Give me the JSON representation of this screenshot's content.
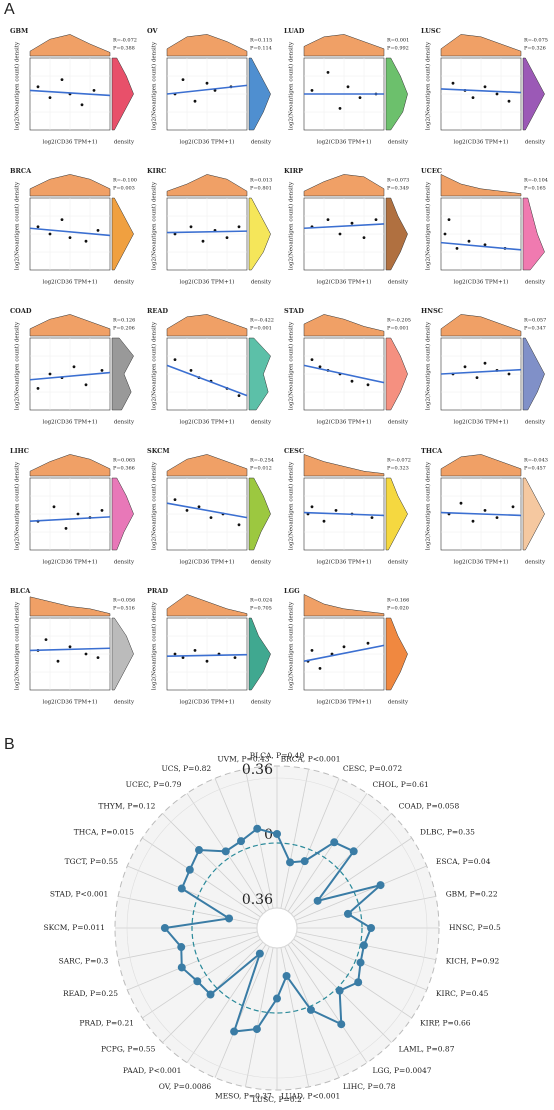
{
  "chart_data": [
    {
      "type": "scatter-grid",
      "panel_label": "A",
      "x_label": "log2(CD36 TPM+1)",
      "y_label": "log2(Neoantigen count) density",
      "density_label": "density",
      "xlim": [
        0,
        1
      ],
      "ylim": [
        0,
        1
      ],
      "top_density_color": "#f0a066",
      "fit_color": "#3b6fd1",
      "panels": [
        {
          "name": "GBM",
          "r": "R=-0.072",
          "p": "P=0.388",
          "color": "#e8506a",
          "px": [
            0.1,
            0.25,
            0.4,
            0.5,
            0.65,
            0.8
          ],
          "py": [
            0.6,
            0.45,
            0.7,
            0.5,
            0.35,
            0.55
          ],
          "fit": [
            0.55,
            0.48
          ],
          "td": [
            0.2,
            0.7,
            0.9,
            0.5,
            0.15
          ],
          "sd": [
            0.1,
            0.5,
            0.9,
            0.6,
            0.2
          ]
        },
        {
          "name": "OV",
          "r": "R=0.115",
          "p": "P=0.114",
          "color": "#4f8fd0",
          "px": [
            0.1,
            0.2,
            0.35,
            0.5,
            0.6,
            0.8
          ],
          "py": [
            0.5,
            0.7,
            0.4,
            0.65,
            0.55,
            0.6
          ],
          "fit": [
            0.5,
            0.62
          ],
          "td": [
            0.3,
            0.8,
            0.9,
            0.6,
            0.2
          ],
          "sd": [
            0.2,
            0.6,
            0.9,
            0.5,
            0.1
          ]
        },
        {
          "name": "LUAD",
          "r": "R=0.001",
          "p": "P=0.992",
          "color": "#6cc06c",
          "px": [
            0.1,
            0.3,
            0.45,
            0.55,
            0.7,
            0.9
          ],
          "py": [
            0.55,
            0.8,
            0.3,
            0.6,
            0.45,
            0.5
          ],
          "fit": [
            0.5,
            0.5
          ],
          "td": [
            0.4,
            0.8,
            0.9,
            0.6,
            0.3
          ],
          "sd": [
            0.2,
            0.7,
            0.9,
            0.6,
            0.2
          ]
        },
        {
          "name": "LUSC",
          "r": "R=-0.075",
          "p": "P=0.326",
          "color": "#9b59b6",
          "px": [
            0.15,
            0.3,
            0.4,
            0.55,
            0.7,
            0.85
          ],
          "py": [
            0.65,
            0.55,
            0.45,
            0.6,
            0.5,
            0.4
          ],
          "fit": [
            0.57,
            0.52
          ],
          "td": [
            0.3,
            0.9,
            0.8,
            0.5,
            0.2
          ],
          "sd": [
            0.1,
            0.5,
            0.9,
            0.5,
            0.1
          ]
        },
        {
          "name": "BRCA",
          "r": "R=-0.100",
          "p": "P=0.003",
          "color": "#f0a040",
          "px": [
            0.1,
            0.25,
            0.4,
            0.5,
            0.7,
            0.85
          ],
          "py": [
            0.6,
            0.5,
            0.7,
            0.45,
            0.4,
            0.55
          ],
          "fit": [
            0.58,
            0.48
          ],
          "td": [
            0.3,
            0.7,
            0.9,
            0.7,
            0.3
          ],
          "sd": [
            0.1,
            0.5,
            0.9,
            0.5,
            0.1
          ]
        },
        {
          "name": "KIRC",
          "r": "R=0.013",
          "p": "P=0.801",
          "color": "#f5e65a",
          "px": [
            0.1,
            0.3,
            0.45,
            0.6,
            0.75,
            0.9
          ],
          "py": [
            0.5,
            0.6,
            0.4,
            0.55,
            0.45,
            0.6
          ],
          "fit": [
            0.52,
            0.54
          ],
          "td": [
            0.2,
            0.5,
            0.9,
            0.7,
            0.2
          ],
          "sd": [
            0.1,
            0.6,
            0.9,
            0.5,
            0.1
          ]
        },
        {
          "name": "KIRP",
          "r": "R=0.073",
          "p": "P=0.349",
          "color": "#b07040",
          "px": [
            0.1,
            0.3,
            0.45,
            0.6,
            0.75,
            0.9
          ],
          "py": [
            0.6,
            0.7,
            0.5,
            0.65,
            0.45,
            0.7
          ],
          "fit": [
            0.58,
            0.64
          ],
          "td": [
            0.2,
            0.6,
            0.9,
            0.8,
            0.3
          ],
          "sd": [
            0.2,
            0.6,
            0.9,
            0.5,
            0.2
          ]
        },
        {
          "name": "UCEC",
          "r": "R=-0.104",
          "p": "P=0.165",
          "color": "#f07ab0",
          "px": [
            0.05,
            0.1,
            0.2,
            0.35,
            0.55,
            0.8
          ],
          "py": [
            0.5,
            0.7,
            0.3,
            0.4,
            0.35,
            0.3
          ],
          "fit": [
            0.38,
            0.28
          ],
          "td": [
            0.9,
            0.5,
            0.3,
            0.2,
            0.1
          ],
          "sd": [
            0.3,
            0.9,
            0.6,
            0.4,
            0.2
          ]
        },
        {
          "name": "COAD",
          "r": "R=0.126",
          "p": "P=0.206",
          "color": "#999999",
          "px": [
            0.1,
            0.25,
            0.4,
            0.55,
            0.7,
            0.9
          ],
          "py": [
            0.3,
            0.5,
            0.45,
            0.6,
            0.35,
            0.55
          ],
          "fit": [
            0.42,
            0.52
          ],
          "td": [
            0.3,
            0.7,
            0.9,
            0.6,
            0.3
          ],
          "sd": [
            0.4,
            0.8,
            0.5,
            0.9,
            0.3
          ]
        },
        {
          "name": "READ",
          "r": "R=-0.422",
          "p": "P=0.001",
          "color": "#5cc0a8",
          "px": [
            0.1,
            0.3,
            0.4,
            0.55,
            0.75,
            0.9
          ],
          "py": [
            0.7,
            0.55,
            0.45,
            0.4,
            0.3,
            0.2
          ],
          "fit": [
            0.62,
            0.2
          ],
          "td": [
            0.3,
            0.8,
            0.9,
            0.6,
            0.3
          ],
          "sd": [
            0.3,
            0.8,
            0.6,
            0.9,
            0.2
          ]
        },
        {
          "name": "STAD",
          "r": "R=-0.205",
          "p": "P=0.001",
          "color": "#f59080",
          "px": [
            0.1,
            0.2,
            0.3,
            0.45,
            0.6,
            0.8
          ],
          "py": [
            0.7,
            0.6,
            0.55,
            0.5,
            0.4,
            0.35
          ],
          "fit": [
            0.62,
            0.38
          ],
          "td": [
            0.5,
            0.9,
            0.7,
            0.4,
            0.2
          ],
          "sd": [
            0.2,
            0.6,
            0.9,
            0.6,
            0.2
          ]
        },
        {
          "name": "HNSC",
          "r": "R=0.057",
          "p": "P=0.347",
          "color": "#8090c8",
          "px": [
            0.15,
            0.3,
            0.45,
            0.55,
            0.7,
            0.85
          ],
          "py": [
            0.5,
            0.6,
            0.45,
            0.65,
            0.55,
            0.5
          ],
          "fit": [
            0.5,
            0.56
          ],
          "td": [
            0.3,
            0.9,
            0.8,
            0.5,
            0.2
          ],
          "sd": [
            0.2,
            0.6,
            0.9,
            0.5,
            0.1
          ]
        },
        {
          "name": "LIHC",
          "r": "R=0.065",
          "p": "P=0.366",
          "color": "#e878b8",
          "px": [
            0.1,
            0.3,
            0.45,
            0.6,
            0.75,
            0.9
          ],
          "py": [
            0.4,
            0.6,
            0.3,
            0.5,
            0.45,
            0.55
          ],
          "fit": [
            0.4,
            0.46
          ],
          "td": [
            0.2,
            0.6,
            0.9,
            0.7,
            0.3
          ],
          "sd": [
            0.2,
            0.5,
            0.9,
            0.6,
            0.2
          ]
        },
        {
          "name": "SKCM",
          "r": "R=-0.254",
          "p": "P=0.012",
          "color": "#9cc840",
          "px": [
            0.1,
            0.25,
            0.4,
            0.55,
            0.7,
            0.9
          ],
          "py": [
            0.7,
            0.55,
            0.6,
            0.45,
            0.5,
            0.35
          ],
          "fit": [
            0.65,
            0.45
          ],
          "td": [
            0.2,
            0.7,
            0.9,
            0.6,
            0.3
          ],
          "sd": [
            0.2,
            0.5,
            0.9,
            0.6,
            0.2
          ]
        },
        {
          "name": "CESC",
          "r": "R=-0.072",
          "p": "P=0.323",
          "color": "#f5d840",
          "px": [
            0.05,
            0.1,
            0.25,
            0.4,
            0.6,
            0.85
          ],
          "py": [
            0.5,
            0.6,
            0.4,
            0.55,
            0.5,
            0.45
          ],
          "fit": [
            0.52,
            0.48
          ],
          "td": [
            0.9,
            0.6,
            0.4,
            0.2,
            0.1
          ],
          "sd": [
            0.1,
            0.5,
            0.9,
            0.5,
            0.2
          ]
        },
        {
          "name": "THCA",
          "r": "R=-0.043",
          "p": "P=0.457",
          "color": "#f5c8a0",
          "px": [
            0.1,
            0.25,
            0.4,
            0.55,
            0.7,
            0.9
          ],
          "py": [
            0.5,
            0.65,
            0.4,
            0.55,
            0.45,
            0.6
          ],
          "fit": [
            0.52,
            0.48
          ],
          "td": [
            0.3,
            0.8,
            0.9,
            0.6,
            0.3
          ],
          "sd": [
            0.1,
            0.5,
            0.9,
            0.5,
            0.1
          ]
        },
        {
          "name": "BLCA",
          "r": "R=0.056",
          "p": "P=0.516",
          "color": "#bbbbbb",
          "px": [
            0.1,
            0.2,
            0.35,
            0.5,
            0.7,
            0.85
          ],
          "py": [
            0.55,
            0.7,
            0.4,
            0.6,
            0.5,
            0.45
          ],
          "fit": [
            0.55,
            0.58
          ],
          "td": [
            0.8,
            0.6,
            0.4,
            0.3,
            0.1
          ],
          "sd": [
            0.1,
            0.5,
            0.9,
            0.6,
            0.1
          ]
        },
        {
          "name": "PRAD",
          "r": "R=0.024",
          "p": "P=0.705",
          "color": "#40a890",
          "px": [
            0.1,
            0.2,
            0.35,
            0.5,
            0.65,
            0.85
          ],
          "py": [
            0.5,
            0.45,
            0.55,
            0.4,
            0.5,
            0.45
          ],
          "fit": [
            0.47,
            0.49
          ],
          "td": [
            0.3,
            0.9,
            0.6,
            0.3,
            0.1
          ],
          "sd": [
            0.1,
            0.6,
            0.9,
            0.4,
            0.1
          ]
        },
        {
          "name": "LGG",
          "r": "R=0.166",
          "p": "P=0.020",
          "color": "#f08840",
          "px": [
            0.05,
            0.1,
            0.2,
            0.35,
            0.5,
            0.8
          ],
          "py": [
            0.4,
            0.55,
            0.3,
            0.5,
            0.6,
            0.65
          ],
          "fit": [
            0.4,
            0.62
          ],
          "td": [
            0.9,
            0.5,
            0.3,
            0.2,
            0.1
          ],
          "sd": [
            0.2,
            0.6,
            0.9,
            0.5,
            0.2
          ]
        }
      ]
    },
    {
      "type": "radar",
      "panel_label": "B",
      "color": "#3a7ca5",
      "zero_color": "#2a8a9a",
      "categories": [
        "BLCA, P=0.49",
        "BRCA, P<0.001",
        "CESC, P=0.072",
        "CHOL, P=0.61",
        "COAD, P=0.058",
        "DLBC, P=0.35",
        "ESCA, P=0.04",
        "GBM, P=0.22",
        "HNSC, P=0.5",
        "KICH, P=0.92",
        "KIRC, P=0.45",
        "KIRP, P=0.66",
        "LAML, P=0.87",
        "LGG, P=0.0047",
        "LIHC, P=0.78",
        "LUAD, P<0.001",
        "LUSC, P=0.2",
        "MESO, P=0.37",
        "OV, P=0.0086",
        "PAAD, P<0.001",
        "PCPG, P=0.55",
        "PRAD, P=0.21",
        "READ, P=0.25",
        "SARC, P=0.3",
        "SKCM, P=0.011",
        "STAD, P<0.001",
        "TGCT, P=0.55",
        "THCA, P=0.015",
        "THYM, P=0.12",
        "UCEC, P=0.79",
        "UCS, P=0.82",
        "UVM, P=0.43"
      ],
      "values": [
        0.05,
        -0.1,
        -0.07,
        0.1,
        0.13,
        -0.2,
        0.15,
        -0.07,
        0.05,
        0.02,
        0.03,
        0.07,
        0.02,
        0.17,
        0.02,
        -0.2,
        -0.08,
        0.1,
        0.15,
        -0.3,
        0.05,
        0.06,
        0.1,
        0.07,
        0.15,
        -0.2,
        0.1,
        0.11,
        0.14,
        0.04,
        0.05,
        0.09
      ],
      "rlim": [
        -0.36,
        0.36
      ],
      "rticks": [
        0.36,
        0,
        {
          "value": -0.36,
          "label": "0.36"
        }
      ]
    }
  ]
}
